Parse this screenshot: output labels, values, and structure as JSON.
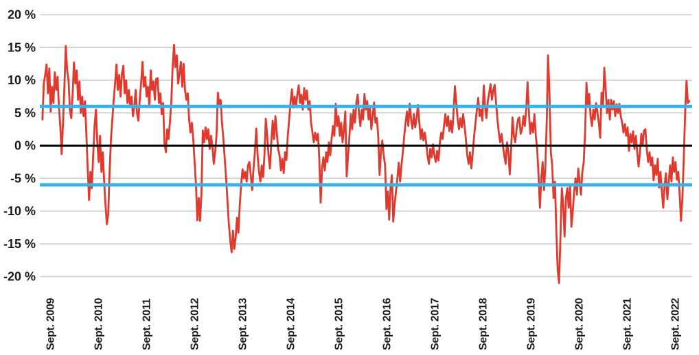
{
  "page": {
    "background": "#ffffff"
  },
  "chart_data": {
    "type": "line",
    "title": "",
    "grid": "horizontal",
    "gridline_color": "#cdcdcd",
    "text_color": "#1a1a1a",
    "x_domain": [
      2009.455,
      2023.03
    ],
    "ylim": [
      -21.2,
      20.8
    ],
    "y_ticks": [
      {
        "value": 20,
        "label": "20 %"
      },
      {
        "value": 15,
        "label": "15 %"
      },
      {
        "value": 10,
        "label": "10 %"
      },
      {
        "value": 5,
        "label": "5 %"
      },
      {
        "value": 0,
        "label": "0 %"
      },
      {
        "value": -5,
        "label": "-5 %"
      },
      {
        "value": -10,
        "label": "-10 %"
      },
      {
        "value": -15,
        "label": "-15 %"
      },
      {
        "value": -20,
        "label": "-20 %"
      }
    ],
    "x_ticks": [
      {
        "t": 2009.67,
        "label": "Sept. 2009"
      },
      {
        "t": 2010.67,
        "label": "Sept. 2010"
      },
      {
        "t": 2011.67,
        "label": "Sept. 2011"
      },
      {
        "t": 2012.67,
        "label": "Sept. 2012"
      },
      {
        "t": 2013.67,
        "label": "Sept. 2013"
      },
      {
        "t": 2014.67,
        "label": "Sept. 2014"
      },
      {
        "t": 2015.67,
        "label": "Sept. 2015"
      },
      {
        "t": 2016.67,
        "label": "Sept. 2016"
      },
      {
        "t": 2017.67,
        "label": "Sept. 2017"
      },
      {
        "t": 2018.67,
        "label": "Sept. 2018"
      },
      {
        "t": 2019.67,
        "label": "Sept. 2019"
      },
      {
        "t": 2020.67,
        "label": "Sept. 2020"
      },
      {
        "t": 2021.67,
        "label": "Sept. 2021"
      },
      {
        "t": 2022.67,
        "label": "Sept. 2022"
      }
    ],
    "reference_lines": [
      {
        "name": "upper-threshold-line",
        "value": 6,
        "color": "#3ab2e6",
        "width": 5
      },
      {
        "name": "lower-threshold-line",
        "value": -6,
        "color": "#3ab2e6",
        "width": 5
      },
      {
        "name": "zero-line",
        "value": 0,
        "color": "#000000",
        "width": 3
      }
    ],
    "series": [
      {
        "name": "deviation-percent",
        "color": "#e0392e",
        "width": 2.8,
        "t_start": 2009.51,
        "t_end": 2022.97,
        "values": [
          4.0,
          9.5,
          10.8,
          12.4,
          8.0,
          11.8,
          5.2,
          9.0,
          6.5,
          11.2,
          8.5,
          10.5,
          6.0,
          3.0,
          -1.3,
          3.5,
          9.0,
          15.2,
          11.5,
          10.0,
          5.5,
          4.2,
          8.0,
          12.7,
          9.5,
          11.5,
          7.0,
          9.8,
          5.0,
          7.5,
          4.5,
          6.8,
          2.0,
          -3.5,
          -8.3,
          -4.0,
          -6.5,
          -1.5,
          3.0,
          5.5,
          0.5,
          -2.5,
          1.5,
          -4.0,
          -1.0,
          -5.5,
          -9.0,
          -12.0,
          -10.5,
          -4.0,
          1.0,
          4.0,
          7.0,
          9.5,
          12.4,
          8.5,
          10.8,
          7.5,
          11.0,
          12.2,
          8.0,
          10.0,
          6.5,
          8.5,
          6.0,
          7.5,
          4.5,
          6.0,
          8.5,
          5.0,
          3.8,
          7.0,
          9.5,
          12.8,
          9.0,
          10.5,
          7.5,
          9.0,
          6.0,
          11.5,
          8.5,
          9.8,
          7.0,
          10.2,
          10.3,
          6.5,
          8.0,
          4.8,
          6.5,
          0.5,
          -1.0,
          2.5,
          1.0,
          3.5,
          6.5,
          12.0,
          15.4,
          12.0,
          13.8,
          9.5,
          11.0,
          12.8,
          9.0,
          12.5,
          8.5,
          7.0,
          8.0,
          4.0,
          2.0,
          3.5,
          1.0,
          -2.5,
          -6.0,
          -11.4,
          -8.0,
          -11.5,
          -7.5,
          2.3,
          0.5,
          2.8,
          1.0,
          2.5,
          -0.5,
          1.5,
          0.0,
          -2.8,
          -1.0,
          1.5,
          8.1,
          6.0,
          7.0,
          3.5,
          1.0,
          -2.0,
          -5.0,
          -8.5,
          -12.0,
          -14.5,
          -16.3,
          -13.0,
          -15.8,
          -14.0,
          -11.0,
          -13.3,
          -9.0,
          -6.0,
          -3.6,
          -5.0,
          -4.0,
          -5.5,
          -3.0,
          -2.5,
          -4.5,
          -6.8,
          -3.5,
          -1.0,
          2.6,
          -1.5,
          -4.0,
          -5.5,
          -3.0,
          -4.8,
          -1.5,
          4.1,
          1.5,
          -1.5,
          -3.5,
          0.5,
          3.8,
          1.0,
          4.5,
          2.0,
          -0.5,
          -1.5,
          -3.8,
          -2.0,
          -4.2,
          -1.0,
          -2.2,
          1.5,
          4.0,
          6.5,
          8.6,
          5.8,
          7.5,
          6.0,
          7.8,
          9.2,
          6.5,
          7.8,
          5.5,
          8.8,
          7.0,
          8.4,
          5.5,
          6.8,
          3.5,
          2.0,
          0.5,
          2.0,
          0.8,
          1.8,
          -2.0,
          -8.7,
          -3.5,
          -1.8,
          -3.8,
          -1.0,
          -2.5,
          0.5,
          -1.5,
          1.0,
          3.0,
          1.5,
          6.4,
          3.0,
          4.5,
          1.5,
          3.5,
          0.5,
          2.5,
          5.2,
          -4.7,
          -1.5,
          1.5,
          4.8,
          2.5,
          5.5,
          3.5,
          6.5,
          7.8,
          5.0,
          3.0,
          5.5,
          4.0,
          7.9,
          5.5,
          6.8,
          4.0,
          5.8,
          2.5,
          4.5,
          6.6,
          3.5,
          4.2,
          1.5,
          -4.5,
          -1.0,
          0.8,
          -1.5,
          -3.0,
          -9.7,
          -7.0,
          -11.3,
          -6.5,
          -4.5,
          -11.6,
          -9.0,
          -7.0,
          -5.0,
          -2.6,
          -5.5,
          -3.0,
          -1.0,
          1.5,
          3.5,
          5.2,
          3.0,
          6.4,
          4.0,
          2.6,
          4.8,
          2.8,
          4.2,
          6.2,
          3.5,
          1.0,
          2.5,
          0.8,
          2.0,
          0.5,
          -1.5,
          -2.8,
          -0.5,
          -1.8,
          0.2,
          -1.5,
          -2.5,
          -0.8,
          -2.3,
          0.5,
          2.0,
          1.0,
          3.0,
          4.8,
          3.0,
          4.5,
          2.2,
          3.8,
          2.0,
          5.0,
          9.1,
          6.5,
          4.0,
          2.5,
          4.2,
          2.8,
          4.8,
          3.0,
          1.0,
          -1.5,
          -2.8,
          -1.0,
          -3.5,
          -1.0,
          1.5,
          3.5,
          5.5,
          7.3,
          4.5,
          5.5,
          3.8,
          9.2,
          6.0,
          4.2,
          6.8,
          8.0,
          9.4,
          7.0,
          8.5,
          9.3,
          6.5,
          4.0,
          2.0,
          0.5,
          1.8,
          0.0,
          -1.5,
          -2.8,
          0.5,
          -1.0,
          -4.4,
          -0.5,
          4.3,
          1.5,
          0.5,
          2.5,
          4.0,
          4.3,
          1.8,
          2.5,
          4.5,
          3.0,
          5.5,
          9.7,
          5.0,
          1.8,
          3.5,
          2.0,
          4.8,
          1.5,
          -0.5,
          -4.5,
          -9.5,
          -5.0,
          -2.5,
          -6.8,
          -3.0,
          4.0,
          13.8,
          8.0,
          -1.0,
          -3.0,
          -8.0,
          -5.5,
          -13.0,
          -19.0,
          -21.0,
          -14.0,
          -6.5,
          -9.0,
          -13.9,
          -8.0,
          -6.5,
          -9.5,
          -6.0,
          -12.4,
          -10.0,
          -7.0,
          -5.0,
          -7.5,
          -3.5,
          -5.5,
          -7.5,
          -4.0,
          -2.5,
          2.0,
          9.6,
          6.0,
          7.9,
          4.5,
          3.0,
          5.5,
          4.0,
          6.5,
          5.0,
          3.5,
          1.2,
          8.1,
          6.0,
          11.9,
          8.5,
          5.0,
          7.0,
          4.0,
          7.0,
          5.5,
          6.8,
          4.5,
          6.3,
          5.0,
          6.4,
          4.5,
          3.5,
          2.0,
          3.3,
          1.5,
          2.8,
          -0.8,
          1.8,
          0.5,
          2.2,
          -0.5,
          1.5,
          -1.0,
          -3.2,
          -1.0,
          1.8,
          0.0,
          2.3,
          2.5,
          -0.5,
          -2.5,
          -1.0,
          -3.0,
          -1.8,
          -5.3,
          -3.0,
          -4.5,
          -2.0,
          -6.4,
          -4.0,
          -7.0,
          -9.5,
          -6.0,
          -4.2,
          -8.2,
          -5.5,
          -3.0,
          -5.5,
          -1.8,
          -4.0,
          -2.5,
          -5.2,
          -4.0,
          -7.5,
          -11.5,
          -8.0,
          -2.0,
          5.0,
          9.9,
          6.5,
          6.8
        ]
      }
    ]
  }
}
